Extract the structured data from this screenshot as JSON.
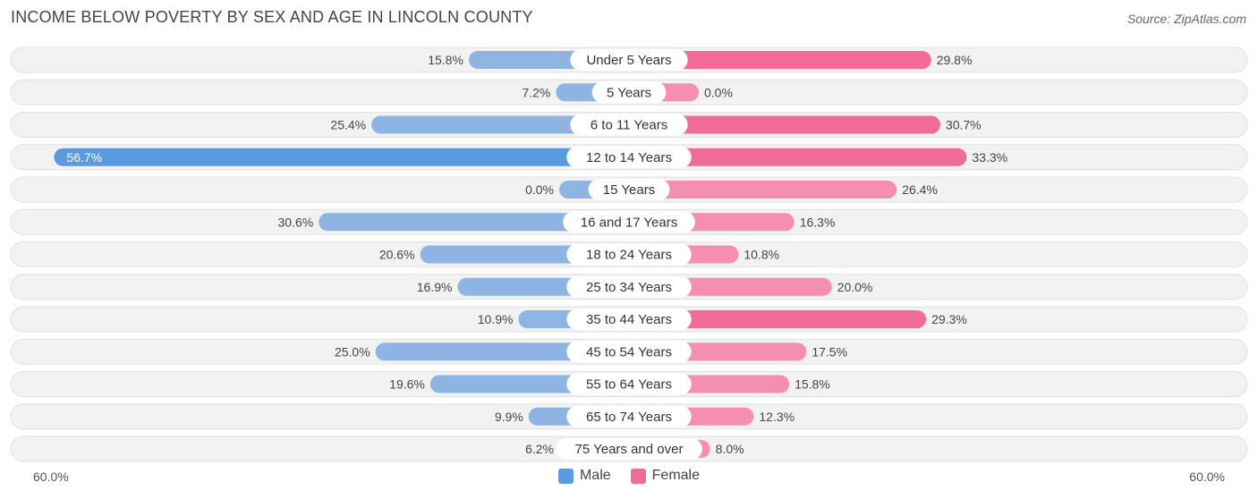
{
  "chart_data": {
    "type": "bar",
    "orientation": "horizontal-diverging",
    "title": "INCOME BELOW POVERTY BY SEX AND AGE IN LINCOLN COUNTY",
    "source": "Source: ZipAtlas.com",
    "axis": {
      "min_label": "60.0%",
      "max_label": "60.0%",
      "max": 60.0
    },
    "categories": [
      "Under 5 Years",
      "5 Years",
      "6 to 11 Years",
      "12 to 14 Years",
      "15 Years",
      "16 and 17 Years",
      "18 to 24 Years",
      "25 to 34 Years",
      "35 to 44 Years",
      "45 to 54 Years",
      "55 to 64 Years",
      "65 to 74 Years",
      "75 Years and over"
    ],
    "series": [
      {
        "name": "Male",
        "color": "#8db4e2",
        "highlight_color": "#5a9be0",
        "values": [
          15.8,
          7.2,
          25.4,
          56.7,
          0.0,
          30.6,
          20.6,
          16.9,
          10.9,
          25.0,
          19.6,
          9.9,
          6.2
        ],
        "labels": [
          "15.8%",
          "7.2%",
          "25.4%",
          "56.7%",
          "0.0%",
          "30.6%",
          "20.6%",
          "16.9%",
          "10.9%",
          "25.0%",
          "19.6%",
          "9.9%",
          "6.2%"
        ]
      },
      {
        "name": "Female",
        "color": "#f48fb1",
        "highlight_color": "#f06b98",
        "values": [
          29.8,
          0.0,
          30.7,
          33.3,
          26.4,
          16.3,
          10.8,
          20.0,
          29.3,
          17.5,
          15.8,
          12.3,
          8.0
        ],
        "labels": [
          "29.8%",
          "0.0%",
          "30.7%",
          "33.3%",
          "26.4%",
          "16.3%",
          "10.8%",
          "20.0%",
          "29.3%",
          "17.5%",
          "15.8%",
          "12.3%",
          "8.0%"
        ]
      }
    ],
    "legend": [
      "Male",
      "Female"
    ]
  }
}
